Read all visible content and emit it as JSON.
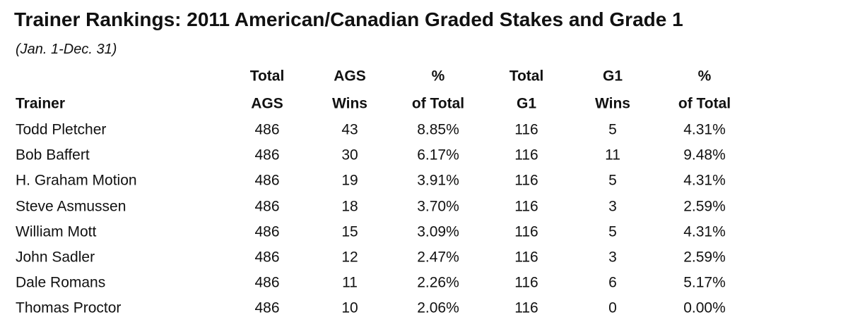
{
  "title": "Trainer Rankings: 2011 American/Canadian Graded Stakes and Grade 1",
  "subtitle": "(Jan. 1-Dec. 31)",
  "table": {
    "columns": [
      {
        "lines": [
          "Trainer"
        ]
      },
      {
        "lines": [
          "Total",
          "AGS"
        ]
      },
      {
        "lines": [
          "AGS",
          "Wins"
        ]
      },
      {
        "lines": [
          "%",
          "of Total"
        ]
      },
      {
        "lines": [
          "Total",
          "G1"
        ]
      },
      {
        "lines": [
          "G1",
          "Wins"
        ]
      },
      {
        "lines": [
          "%",
          "of Total"
        ]
      }
    ],
    "rows": [
      [
        "Todd Pletcher",
        "486",
        "43",
        "8.85%",
        "116",
        "5",
        "4.31%"
      ],
      [
        "Bob Baffert",
        "486",
        "30",
        "6.17%",
        "116",
        "11",
        "9.48%"
      ],
      [
        "H. Graham Motion",
        "486",
        "19",
        "3.91%",
        "116",
        "5",
        "4.31%"
      ],
      [
        "Steve Asmussen",
        "486",
        "18",
        "3.70%",
        "116",
        "3",
        "2.59%"
      ],
      [
        "William Mott",
        "486",
        "15",
        "3.09%",
        "116",
        "5",
        "4.31%"
      ],
      [
        "John Sadler",
        "486",
        "12",
        "2.47%",
        "116",
        "3",
        "2.59%"
      ],
      [
        "Dale Romans",
        "486",
        "11",
        "2.26%",
        "116",
        "6",
        "5.17%"
      ],
      [
        "Thomas Proctor",
        "486",
        "10",
        "2.06%",
        "116",
        "0",
        "0.00%"
      ]
    ]
  }
}
